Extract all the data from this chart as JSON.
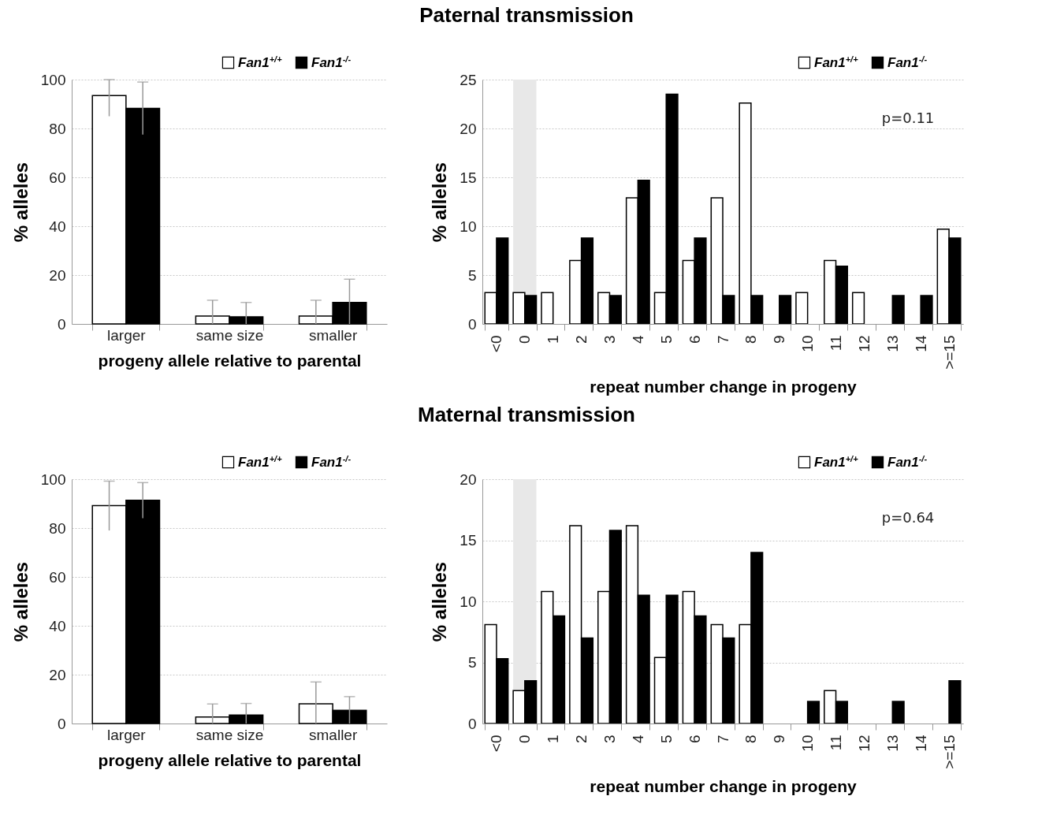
{
  "chart_data": [
    {
      "type": "other",
      "title": "Paternal transmission"
    },
    {
      "type": "bar",
      "xlabel": "progeny allele relative to parental",
      "ylabel": "% alleles",
      "categories": [
        "larger",
        "same size",
        "smaller"
      ],
      "ylim": [
        0,
        100
      ],
      "yticks": [
        0,
        20,
        40,
        60,
        80,
        100
      ],
      "grid": "y",
      "legend": "top right",
      "series": [
        {
          "name": "Fan1$^{+/+}$",
          "color": "#ffffff",
          "values": [
            93.5,
            3.2,
            3.2
          ],
          "errors": [
            [
              85,
              100
            ],
            [
              0,
              9.7
            ],
            [
              0,
              9.7
            ]
          ]
        },
        {
          "name": "Fan1$^{-/-}$",
          "color": "#000000",
          "values": [
            88.2,
            2.9,
            8.8
          ],
          "errors": [
            [
              77.5,
              99
            ],
            [
              0,
              8.8
            ],
            [
              0,
              18.3
            ]
          ]
        }
      ]
    },
    {
      "type": "bar",
      "xlabel": "repeat number change in progeny",
      "ylabel": "% alleles",
      "categories": [
        "<0",
        "0",
        "1",
        "2",
        "3",
        "4",
        "5",
        "6",
        "7",
        "8",
        "9",
        "10",
        "11",
        "12",
        "13",
        "14",
        ">=15"
      ],
      "ylim": [
        0,
        25
      ],
      "yticks": [
        0,
        5,
        10,
        15,
        20,
        25
      ],
      "grid": "y",
      "legend": "top right",
      "annotations": [
        "p=0.11"
      ],
      "bands": [
        {
          "axis": "x",
          "from": "0",
          "to": "0",
          "color": "#e8e8e8"
        }
      ],
      "series": [
        {
          "name": "Fan1$^{+/+}$",
          "color": "#ffffff",
          "values": [
            3.2,
            3.2,
            3.2,
            6.5,
            3.2,
            12.9,
            3.2,
            6.5,
            12.9,
            22.6,
            null,
            3.2,
            6.5,
            3.2,
            null,
            null,
            9.7
          ]
        },
        {
          "name": "Fan1$^{-/-}$",
          "color": "#000000",
          "values": [
            8.8,
            2.9,
            null,
            8.8,
            2.9,
            14.7,
            23.5,
            8.8,
            2.9,
            2.9,
            2.9,
            null,
            5.9,
            null,
            2.9,
            2.9,
            8.8
          ]
        }
      ]
    },
    {
      "type": "other",
      "title": "Maternal transmission"
    },
    {
      "type": "bar",
      "xlabel": "progeny allele relative to parental",
      "ylabel": "% alleles",
      "categories": [
        "larger",
        "same size",
        "smaller"
      ],
      "ylim": [
        0,
        100
      ],
      "yticks": [
        0,
        20,
        40,
        60,
        80,
        100
      ],
      "grid": "y",
      "legend": "top right",
      "series": [
        {
          "name": "Fan1$^{+/+}$",
          "color": "#ffffff",
          "values": [
            89.2,
            2.7,
            8.1
          ],
          "errors": [
            [
              79,
              99.2
            ],
            [
              0,
              8
            ],
            [
              0,
              17
            ]
          ]
        },
        {
          "name": "Fan1$^{-/-}$",
          "color": "#000000",
          "values": [
            91.4,
            3.5,
            5.4
          ],
          "errors": [
            [
              84,
              98.6
            ],
            [
              0,
              8.2
            ],
            [
              0,
              11
            ]
          ]
        }
      ]
    },
    {
      "type": "bar",
      "xlabel": "repeat number change in progeny",
      "ylabel": "% alleles",
      "categories": [
        "<0",
        "0",
        "1",
        "2",
        "3",
        "4",
        "5",
        "6",
        "7",
        "8",
        "9",
        "10",
        "11",
        "12",
        "13",
        "14",
        ">=15"
      ],
      "ylim": [
        0,
        20
      ],
      "yticks": [
        0,
        5,
        10,
        15,
        20
      ],
      "grid": "y",
      "legend": "top right",
      "annotations": [
        "p=0.64"
      ],
      "bands": [
        {
          "axis": "x",
          "from": "0",
          "to": "0",
          "color": "#e8e8e8"
        }
      ],
      "series": [
        {
          "name": "Fan1$^{+/+}$",
          "color": "#ffffff",
          "values": [
            8.1,
            2.7,
            10.8,
            16.2,
            10.8,
            16.2,
            5.4,
            10.8,
            8.1,
            8.1,
            null,
            null,
            2.7,
            null,
            null,
            null,
            null
          ]
        },
        {
          "name": "Fan1$^{-/-}$",
          "color": "#000000",
          "values": [
            5.3,
            3.5,
            8.8,
            7.0,
            15.8,
            10.5,
            10.5,
            8.8,
            7.0,
            14.0,
            null,
            1.8,
            1.8,
            null,
            1.8,
            null,
            3.5
          ]
        }
      ]
    }
  ]
}
